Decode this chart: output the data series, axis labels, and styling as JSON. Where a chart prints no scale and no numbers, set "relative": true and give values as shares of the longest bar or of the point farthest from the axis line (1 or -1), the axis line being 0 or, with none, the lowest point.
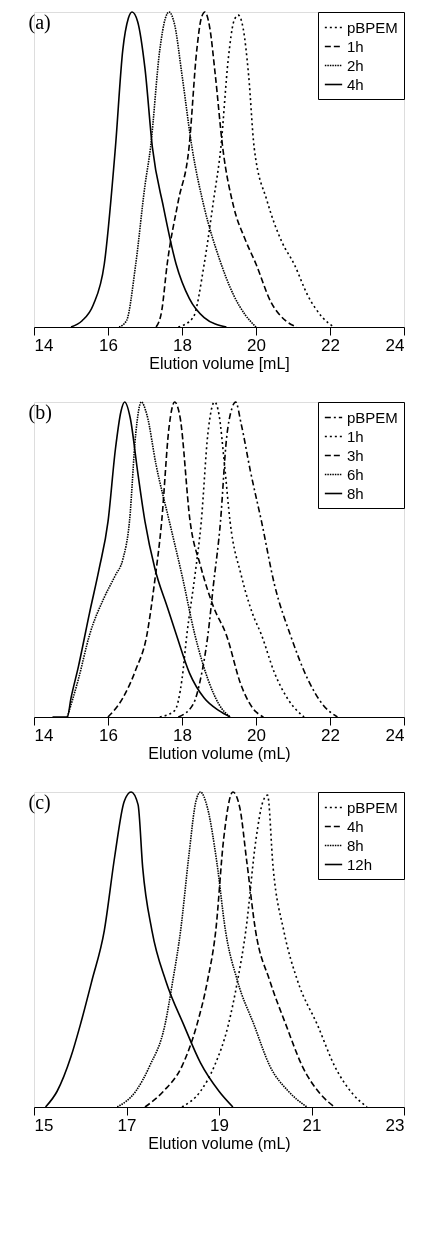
{
  "chart_data": [
    {
      "type": "line",
      "title": "(a)",
      "xlabel": "Elution volume [mL]",
      "relative": true,
      "xlim": [
        14,
        24
      ],
      "xticks": [
        14,
        16,
        18,
        20,
        22,
        24
      ],
      "legend": "top right",
      "grid": false,
      "marker": "none",
      "series": [
        {
          "name": "pBPEM",
          "color": "#000000",
          "line_style": "dotted",
          "x": [
            17.9,
            18.3,
            18.6,
            18.85,
            19.05,
            19.25,
            19.4,
            19.52,
            19.65,
            19.8,
            19.95,
            20.3,
            20.7,
            21.03,
            21.4,
            21.8,
            22.1
          ],
          "values": [
            0,
            0.03,
            0.2,
            0.4,
            0.57,
            0.85,
            0.97,
            0.99,
            0.95,
            0.8,
            0.57,
            0.4,
            0.27,
            0.2,
            0.1,
            0.03,
            0
          ]
        },
        {
          "name": "1h",
          "color": "#000000",
          "line_style": "dashed",
          "x": [
            17.3,
            17.45,
            17.6,
            17.9,
            18.19,
            18.4,
            18.52,
            18.62,
            18.75,
            18.9,
            19.1,
            19.4,
            19.7,
            20.0,
            20.4,
            20.8,
            21.1
          ],
          "values": [
            0,
            0.05,
            0.2,
            0.4,
            0.57,
            0.88,
            0.98,
            1,
            0.95,
            0.8,
            0.57,
            0.38,
            0.28,
            0.2,
            0.08,
            0.02,
            0
          ]
        },
        {
          "name": "2h",
          "color": "#000000",
          "line_style": "densely dotted",
          "x": [
            16.3,
            16.5,
            16.75,
            17.0,
            17.15,
            17.4,
            17.55,
            17.65,
            17.8,
            18.0,
            18.27,
            18.6,
            19.0,
            19.4,
            19.7,
            20.0
          ],
          "values": [
            0,
            0.02,
            0.2,
            0.45,
            0.57,
            0.88,
            0.98,
            1,
            0.96,
            0.8,
            0.57,
            0.38,
            0.22,
            0.1,
            0.04,
            0
          ]
        },
        {
          "name": "4h",
          "color": "#000000",
          "line_style": "solid",
          "x": [
            15.0,
            15.3,
            15.6,
            15.9,
            16.2,
            16.4,
            16.55,
            16.65,
            16.8,
            17.0,
            17.2,
            17.5,
            17.84,
            18.2,
            18.6,
            19.2
          ],
          "values": [
            0,
            0.02,
            0.07,
            0.2,
            0.57,
            0.88,
            0.98,
            1,
            0.97,
            0.82,
            0.57,
            0.38,
            0.2,
            0.09,
            0.03,
            0
          ]
        }
      ]
    },
    {
      "type": "line",
      "title": "(b)",
      "xlabel": "Elution volume (mL)",
      "relative": true,
      "xlim": [
        14,
        24
      ],
      "xticks": [
        14,
        16,
        18,
        20,
        22,
        24
      ],
      "legend": "top right",
      "grid": false,
      "marker": "none",
      "series": [
        {
          "name": "pBPEM",
          "color": "#000000",
          "line_style": "dashdot",
          "x": [
            17.9,
            18.3,
            18.5,
            18.7,
            18.85,
            19.04,
            19.2,
            19.35,
            19.45,
            19.6,
            19.85,
            20.15,
            20.5,
            20.93,
            21.4,
            21.8,
            22.2
          ],
          "values": [
            0,
            0.04,
            0.12,
            0.26,
            0.42,
            0.62,
            0.88,
            0.98,
            1,
            0.93,
            0.78,
            0.62,
            0.42,
            0.26,
            0.12,
            0.04,
            0
          ]
        },
        {
          "name": "1h",
          "color": "#000000",
          "line_style": "dotted",
          "x": [
            17.4,
            17.8,
            18.0,
            18.13,
            18.35,
            18.52,
            18.7,
            18.88,
            19.0,
            19.15,
            19.3,
            19.6,
            19.9,
            20.15,
            20.5,
            20.9,
            21.3
          ],
          "values": [
            0,
            0.02,
            0.12,
            0.26,
            0.45,
            0.62,
            0.9,
            1,
            0.96,
            0.8,
            0.62,
            0.45,
            0.33,
            0.26,
            0.14,
            0.05,
            0
          ]
        },
        {
          "name": "3h",
          "color": "#000000",
          "line_style": "dashed",
          "x": [
            16.0,
            16.4,
            16.75,
            17.05,
            17.25,
            17.45,
            17.65,
            17.8,
            17.95,
            18.22,
            18.5,
            18.85,
            19.2,
            19.6,
            19.9,
            20.2
          ],
          "values": [
            0,
            0.06,
            0.15,
            0.26,
            0.42,
            0.62,
            0.92,
            1,
            0.95,
            0.62,
            0.48,
            0.35,
            0.26,
            0.1,
            0.03,
            0
          ]
        },
        {
          "name": "6h",
          "color": "#000000",
          "line_style": "densely dotted",
          "x": [
            14.9,
            15.2,
            15.5,
            15.9,
            16.2,
            16.4,
            16.58,
            16.75,
            16.9,
            17.05,
            17.3,
            17.66,
            18.0,
            18.35,
            18.7,
            19.0,
            19.3
          ],
          "values": [
            0,
            0.12,
            0.26,
            0.38,
            0.45,
            0.5,
            0.62,
            0.9,
            1,
            0.96,
            0.8,
            0.62,
            0.45,
            0.26,
            0.12,
            0.04,
            0
          ]
        },
        {
          "name": "8h",
          "color": "#000000",
          "line_style": "solid",
          "x": [
            14.5,
            14.9,
            15.0,
            15.2,
            15.5,
            15.76,
            16.0,
            16.2,
            16.35,
            16.45,
            16.6,
            16.8,
            17.0,
            17.27,
            17.6,
            17.85,
            18.2,
            18.6,
            19.0,
            19.3
          ],
          "values": [
            0,
            0,
            0.06,
            0.16,
            0.33,
            0.47,
            0.62,
            0.85,
            0.97,
            1,
            0.95,
            0.78,
            0.62,
            0.47,
            0.35,
            0.26,
            0.14,
            0.06,
            0.02,
            0
          ]
        }
      ]
    },
    {
      "type": "line",
      "title": "(c)",
      "xlabel": "Elution volume (mL)",
      "relative": true,
      "xlim": [
        15,
        23
      ],
      "xticks": [
        15,
        17,
        19,
        21,
        23
      ],
      "legend": "top right",
      "grid": false,
      "marker": "none",
      "series": [
        {
          "name": "pBPEM",
          "color": "#000000",
          "line_style": "dotted",
          "x": [
            18.2,
            18.6,
            18.9,
            19.2,
            19.4,
            19.58,
            19.8,
            19.95,
            20.05,
            20.17,
            20.4,
            20.7,
            21.13,
            21.5,
            21.9,
            22.2
          ],
          "values": [
            0,
            0.05,
            0.13,
            0.26,
            0.4,
            0.56,
            0.85,
            0.97,
            0.99,
            0.76,
            0.56,
            0.4,
            0.26,
            0.13,
            0.04,
            0
          ]
        },
        {
          "name": "4h",
          "color": "#000000",
          "line_style": "dashed",
          "x": [
            17.4,
            17.8,
            18.2,
            18.52,
            18.75,
            18.93,
            19.1,
            19.3,
            19.45,
            19.6,
            19.79,
            20.1,
            20.45,
            20.8,
            21.2,
            21.5
          ],
          "values": [
            0,
            0.05,
            0.13,
            0.26,
            0.4,
            0.56,
            0.85,
            1,
            0.95,
            0.78,
            0.56,
            0.4,
            0.26,
            0.13,
            0.04,
            0
          ]
        },
        {
          "name": "8h",
          "color": "#000000",
          "line_style": "densely dotted",
          "x": [
            16.8,
            17.2,
            17.5,
            17.83,
            18.0,
            18.17,
            18.35,
            18.5,
            18.6,
            18.75,
            18.95,
            19.14,
            19.4,
            19.76,
            20.1,
            20.5,
            20.9
          ],
          "values": [
            0,
            0.05,
            0.13,
            0.26,
            0.4,
            0.56,
            0.8,
            0.97,
            1,
            0.95,
            0.78,
            0.56,
            0.4,
            0.26,
            0.13,
            0.05,
            0
          ]
        },
        {
          "name": "12h",
          "color": "#000000",
          "line_style": "solid",
          "x": [
            15.25,
            15.5,
            15.8,
            16.0,
            16.25,
            16.52,
            16.75,
            16.95,
            17.1,
            17.25,
            17.35,
            17.55,
            17.85,
            18.24,
            18.6,
            19.0,
            19.3
          ],
          "values": [
            0,
            0.05,
            0.16,
            0.26,
            0.4,
            0.56,
            0.8,
            0.97,
            1,
            0.96,
            0.76,
            0.56,
            0.4,
            0.26,
            0.14,
            0.05,
            0
          ]
        }
      ]
    }
  ]
}
